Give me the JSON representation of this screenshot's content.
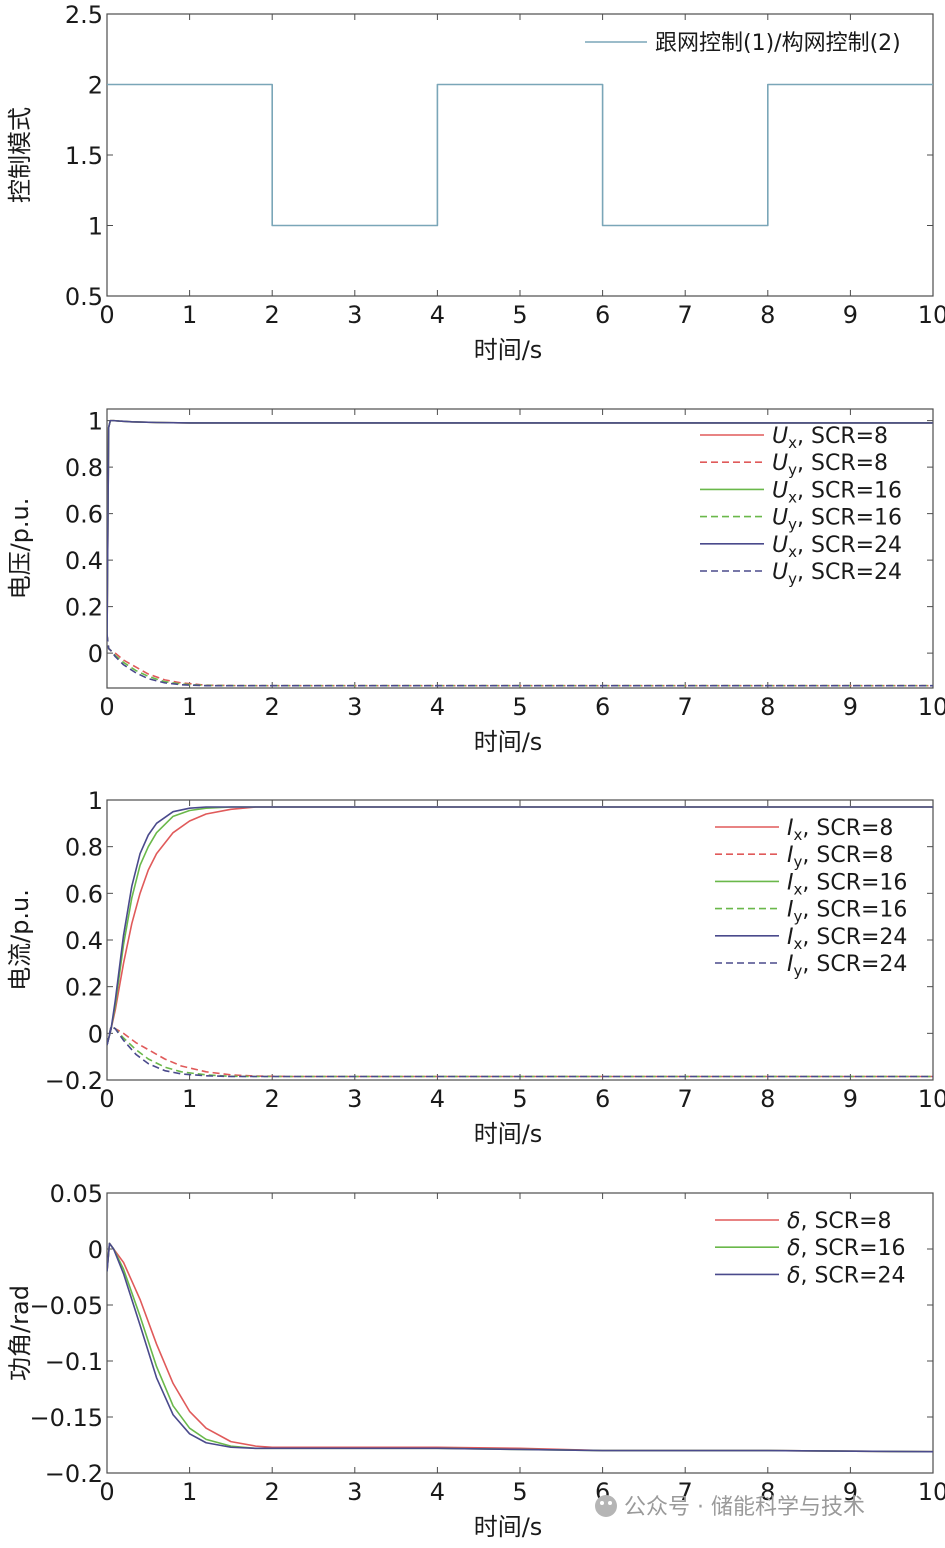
{
  "watermark": "公众号 · 储能科学与技术",
  "chart_data": [
    {
      "type": "line",
      "xlabel": "时间/s",
      "ylabel": "控制模式",
      "xlim": [
        0,
        10
      ],
      "ylim": [
        0.5,
        2.5
      ],
      "xticks": [
        "0",
        "1",
        "2",
        "3",
        "4",
        "5",
        "6",
        "7",
        "8",
        "9",
        "10"
      ],
      "yticks": [
        "0.5",
        "1",
        "1.5",
        "2",
        "2.5"
      ],
      "legend_position": "top-right",
      "series": [
        {
          "name": "跟网控制(1)/构网控制(2)",
          "color": "#7aa6b8",
          "style": "solid",
          "step": true,
          "x": [
            0,
            2,
            2,
            4,
            4,
            6,
            6,
            8,
            8,
            10
          ],
          "y": [
            2,
            2,
            1,
            1,
            2,
            2,
            1,
            1,
            2,
            2
          ]
        }
      ]
    },
    {
      "type": "line",
      "xlabel": "时间/s",
      "ylabel": "电压/p.u.",
      "xlim": [
        0,
        10
      ],
      "ylim": [
        -0.15,
        1.05
      ],
      "xticks": [
        "0",
        "1",
        "2",
        "3",
        "4",
        "5",
        "6",
        "7",
        "8",
        "9",
        "10"
      ],
      "yticks": [
        "0",
        "0.2",
        "0.4",
        "0.6",
        "0.8",
        "1"
      ],
      "legend_position": "top-right",
      "series": [
        {
          "name": "Ux, SCR=8",
          "sym": "U",
          "sub": "x",
          "suffix": ", SCR=8",
          "color": "#e05a5a",
          "style": "solid",
          "x": [
            0,
            0.02,
            0.04,
            0.08,
            0.15,
            0.3,
            0.6,
            1,
            2,
            4,
            6,
            8,
            10
          ],
          "y": [
            0.05,
            0.97,
            1.0,
            1.0,
            0.998,
            0.995,
            0.992,
            0.99,
            0.99,
            0.99,
            0.99,
            0.99,
            0.99
          ]
        },
        {
          "name": "Uy, SCR=8",
          "sym": "U",
          "sub": "y",
          "suffix": ", SCR=8",
          "color": "#e05a5a",
          "style": "dashed",
          "x": [
            0,
            0.02,
            0.05,
            0.1,
            0.2,
            0.35,
            0.5,
            0.7,
            0.9,
            1.2,
            1.6,
            2,
            4,
            6,
            8,
            10
          ],
          "y": [
            0.08,
            0.02,
            0.01,
            0.0,
            -0.03,
            -0.06,
            -0.09,
            -0.115,
            -0.128,
            -0.138,
            -0.14,
            -0.14,
            -0.14,
            -0.14,
            -0.14,
            -0.14
          ]
        },
        {
          "name": "Ux, SCR=16",
          "sym": "U",
          "sub": "x",
          "suffix": ", SCR=16",
          "color": "#6ab84a",
          "style": "solid",
          "x": [
            0,
            0.02,
            0.04,
            0.08,
            0.15,
            0.3,
            0.6,
            1,
            2,
            4,
            6,
            8,
            10
          ],
          "y": [
            0.05,
            0.97,
            1.0,
            1.0,
            0.998,
            0.995,
            0.992,
            0.99,
            0.99,
            0.99,
            0.99,
            0.99,
            0.99
          ]
        },
        {
          "name": "Uy, SCR=16",
          "sym": "U",
          "sub": "y",
          "suffix": ", SCR=16",
          "color": "#6ab84a",
          "style": "dashed",
          "x": [
            0,
            0.02,
            0.05,
            0.1,
            0.2,
            0.35,
            0.5,
            0.7,
            0.9,
            1.2,
            1.6,
            2,
            4,
            6,
            8,
            10
          ],
          "y": [
            0.08,
            0.02,
            0.01,
            -0.01,
            -0.04,
            -0.075,
            -0.1,
            -0.123,
            -0.133,
            -0.139,
            -0.14,
            -0.14,
            -0.14,
            -0.14,
            -0.14,
            -0.14
          ]
        },
        {
          "name": "Ux, SCR=24",
          "sym": "U",
          "sub": "x",
          "suffix": ", SCR=24",
          "color": "#4a4a8c",
          "style": "solid",
          "x": [
            0,
            0.02,
            0.04,
            0.08,
            0.15,
            0.3,
            0.6,
            1,
            2,
            4,
            6,
            8,
            10
          ],
          "y": [
            0.05,
            0.97,
            1.0,
            1.0,
            0.998,
            0.995,
            0.992,
            0.99,
            0.99,
            0.99,
            0.99,
            0.99,
            0.99
          ]
        },
        {
          "name": "Uy, SCR=24",
          "sym": "U",
          "sub": "y",
          "suffix": ", SCR=24",
          "color": "#4a4a8c",
          "style": "dashed",
          "x": [
            0,
            0.02,
            0.05,
            0.1,
            0.2,
            0.35,
            0.5,
            0.7,
            0.9,
            1.2,
            1.6,
            2,
            4,
            6,
            8,
            10
          ],
          "y": [
            0.08,
            0.02,
            0.01,
            -0.015,
            -0.05,
            -0.085,
            -0.11,
            -0.128,
            -0.136,
            -0.14,
            -0.14,
            -0.14,
            -0.14,
            -0.14,
            -0.14,
            -0.14
          ]
        }
      ]
    },
    {
      "type": "line",
      "xlabel": "时间/s",
      "ylabel": "电流/p.u.",
      "xlim": [
        0,
        10
      ],
      "ylim": [
        -0.2,
        1.0
      ],
      "xticks": [
        "0",
        "1",
        "2",
        "3",
        "4",
        "5",
        "6",
        "7",
        "8",
        "9",
        "10"
      ],
      "yticks": [
        "−0.2",
        "0",
        "0.2",
        "0.4",
        "0.6",
        "0.8",
        "1"
      ],
      "legend_position": "top-right",
      "series": [
        {
          "name": "Ix, SCR=8",
          "sym": "I",
          "sub": "x",
          "suffix": ", SCR=8",
          "color": "#e05a5a",
          "style": "solid",
          "x": [
            0,
            0.05,
            0.1,
            0.2,
            0.3,
            0.4,
            0.5,
            0.6,
            0.8,
            1.0,
            1.2,
            1.5,
            1.8,
            2.0,
            3,
            4,
            6,
            8,
            10
          ],
          "y": [
            -0.05,
            0.02,
            0.1,
            0.3,
            0.47,
            0.6,
            0.7,
            0.77,
            0.86,
            0.91,
            0.94,
            0.96,
            0.97,
            0.97,
            0.97,
            0.97,
            0.97,
            0.97,
            0.97
          ]
        },
        {
          "name": "Iy, SCR=8",
          "sym": "I",
          "sub": "y",
          "suffix": ", SCR=8",
          "color": "#e05a5a",
          "style": "dashed",
          "x": [
            0,
            0.05,
            0.1,
            0.2,
            0.35,
            0.5,
            0.7,
            0.9,
            1.2,
            1.5,
            1.8,
            2.2,
            3,
            5,
            8,
            10
          ],
          "y": [
            -0.05,
            0.03,
            0.02,
            0.0,
            -0.04,
            -0.07,
            -0.11,
            -0.14,
            -0.165,
            -0.178,
            -0.183,
            -0.185,
            -0.185,
            -0.185,
            -0.185,
            -0.185
          ]
        },
        {
          "name": "Ix, SCR=16",
          "sym": "I",
          "sub": "x",
          "suffix": ", SCR=16",
          "color": "#6ab84a",
          "style": "solid",
          "x": [
            0,
            0.05,
            0.1,
            0.2,
            0.3,
            0.4,
            0.5,
            0.6,
            0.8,
            1.0,
            1.2,
            1.5,
            1.8,
            2.0,
            3,
            4,
            6,
            8,
            10
          ],
          "y": [
            -0.05,
            0.02,
            0.12,
            0.38,
            0.58,
            0.72,
            0.8,
            0.86,
            0.93,
            0.955,
            0.965,
            0.97,
            0.97,
            0.97,
            0.97,
            0.97,
            0.97,
            0.97,
            0.97
          ]
        },
        {
          "name": "Iy, SCR=16",
          "sym": "I",
          "sub": "y",
          "suffix": ", SCR=16",
          "color": "#6ab84a",
          "style": "dashed",
          "x": [
            0,
            0.05,
            0.1,
            0.2,
            0.35,
            0.5,
            0.7,
            0.9,
            1.2,
            1.5,
            1.8,
            2.2,
            3,
            5,
            8,
            10
          ],
          "y": [
            -0.05,
            0.03,
            0.02,
            -0.02,
            -0.07,
            -0.11,
            -0.145,
            -0.165,
            -0.178,
            -0.184,
            -0.185,
            -0.185,
            -0.185,
            -0.185,
            -0.185,
            -0.185
          ]
        },
        {
          "name": "Ix, SCR=24",
          "sym": "I",
          "sub": "x",
          "suffix": ", SCR=24",
          "color": "#4a4a8c",
          "style": "solid",
          "x": [
            0,
            0.05,
            0.1,
            0.2,
            0.3,
            0.4,
            0.5,
            0.6,
            0.8,
            1.0,
            1.2,
            1.5,
            1.8,
            2.0,
            3,
            4,
            6,
            8,
            10
          ],
          "y": [
            -0.05,
            0.02,
            0.14,
            0.42,
            0.63,
            0.77,
            0.85,
            0.9,
            0.95,
            0.965,
            0.97,
            0.97,
            0.97,
            0.97,
            0.97,
            0.97,
            0.97,
            0.97,
            0.97
          ]
        },
        {
          "name": "Iy, SCR=24",
          "sym": "I",
          "sub": "y",
          "suffix": ", SCR=24",
          "color": "#4a4a8c",
          "style": "dashed",
          "x": [
            0,
            0.05,
            0.1,
            0.2,
            0.35,
            0.5,
            0.7,
            0.9,
            1.2,
            1.5,
            1.8,
            2.2,
            3,
            5,
            8,
            10
          ],
          "y": [
            -0.05,
            0.03,
            0.02,
            -0.03,
            -0.09,
            -0.13,
            -0.16,
            -0.174,
            -0.182,
            -0.185,
            -0.185,
            -0.185,
            -0.185,
            -0.185,
            -0.185,
            -0.185
          ]
        }
      ]
    },
    {
      "type": "line",
      "xlabel": "时间/s",
      "ylabel": "功角/rad",
      "xlim": [
        0,
        10
      ],
      "ylim": [
        -0.2,
        0.05
      ],
      "xticks": [
        "0",
        "1",
        "2",
        "3",
        "4",
        "5",
        "6",
        "7",
        "8",
        "9",
        "10"
      ],
      "yticks": [
        "−0.2",
        "−0.15",
        "−0.1",
        "−0.05",
        "0",
        "0.05"
      ],
      "legend_position": "top-right",
      "series": [
        {
          "name": "δ, SCR=8",
          "sym": "δ",
          "sub": "",
          "suffix": ", SCR=8",
          "color": "#e05a5a",
          "style": "solid",
          "x": [
            0,
            0.03,
            0.08,
            0.2,
            0.4,
            0.6,
            0.8,
            1.0,
            1.2,
            1.5,
            1.8,
            2.0,
            3,
            4,
            5,
            6,
            8,
            10
          ],
          "y": [
            -0.02,
            0.005,
            0.0,
            -0.012,
            -0.045,
            -0.085,
            -0.12,
            -0.145,
            -0.16,
            -0.172,
            -0.176,
            -0.177,
            -0.177,
            -0.177,
            -0.178,
            -0.18,
            -0.18,
            -0.181
          ]
        },
        {
          "name": "δ, SCR=16",
          "sym": "δ",
          "sub": "",
          "suffix": ", SCR=16",
          "color": "#6ab84a",
          "style": "solid",
          "x": [
            0,
            0.03,
            0.08,
            0.2,
            0.4,
            0.6,
            0.8,
            1.0,
            1.2,
            1.5,
            1.8,
            2.0,
            3,
            4,
            5,
            6,
            8,
            10
          ],
          "y": [
            -0.02,
            0.005,
            0.0,
            -0.018,
            -0.06,
            -0.105,
            -0.14,
            -0.16,
            -0.17,
            -0.176,
            -0.178,
            -0.178,
            -0.178,
            -0.178,
            -0.179,
            -0.18,
            -0.18,
            -0.181
          ]
        },
        {
          "name": "δ, SCR=24",
          "sym": "δ",
          "sub": "",
          "suffix": ", SCR=24",
          "color": "#4a4a8c",
          "style": "solid",
          "x": [
            0,
            0.03,
            0.08,
            0.2,
            0.4,
            0.6,
            0.8,
            1.0,
            1.2,
            1.5,
            1.8,
            2.0,
            3,
            4,
            5,
            6,
            8,
            10
          ],
          "y": [
            -0.02,
            0.005,
            0.0,
            -0.022,
            -0.068,
            -0.115,
            -0.148,
            -0.165,
            -0.173,
            -0.177,
            -0.178,
            -0.178,
            -0.178,
            -0.178,
            -0.179,
            -0.18,
            -0.18,
            -0.181
          ]
        }
      ]
    }
  ]
}
